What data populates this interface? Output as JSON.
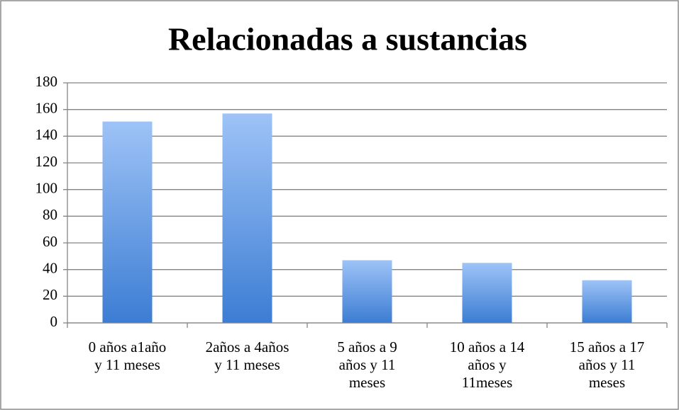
{
  "chart_data": {
    "type": "bar",
    "title": "Relacionadas a sustancias",
    "categories": [
      "0 años a1año\ny 11 meses",
      "2años a 4años\ny 11 meses",
      "5 años a 9\naños y 11\nmeses",
      "10 años a 14\naños y\n11meses",
      "15 años a 17\naños y 11\nmeses"
    ],
    "values": [
      151,
      157,
      47,
      45,
      32
    ],
    "color": [
      "#9ec3f7",
      "#3c7dd3"
    ],
    "ylim": [
      0,
      180
    ],
    "yticks": [
      0,
      20,
      40,
      60,
      80,
      100,
      120,
      140,
      160,
      180
    ],
    "grid": true
  }
}
